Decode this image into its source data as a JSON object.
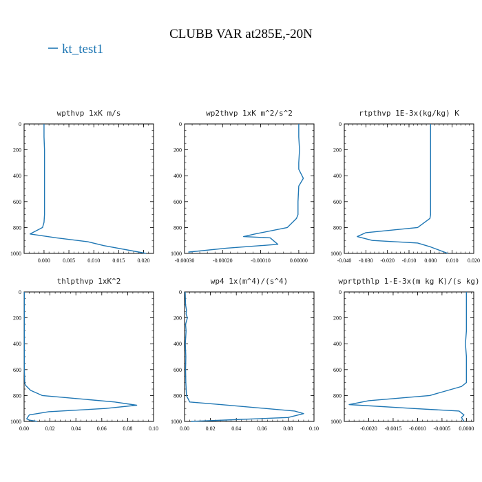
{
  "figure": {
    "title": "CLUBB VAR at285E,-20N",
    "legend": {
      "label": "kt_test1",
      "color": "#1f77b4"
    }
  },
  "chart_data": [
    {
      "type": "line",
      "title": "wpthvp   1xK m/s",
      "xlabel": "",
      "ylabel": "",
      "xlim": [
        -0.004,
        0.022
      ],
      "ylim": [
        1000,
        0
      ],
      "xticks": [
        0.0,
        0.005,
        0.01,
        0.015,
        0.02
      ],
      "xtick_labels": [
        "0.000",
        "0.005",
        "0.010",
        "0.015",
        "0.020"
      ],
      "yticks": [
        0,
        200,
        400,
        600,
        800,
        1000
      ],
      "ytick_labels": [
        "0",
        "200",
        "400",
        "600",
        "800",
        "1000"
      ],
      "series": [
        {
          "name": "kt_test1",
          "x": [
            0.0,
            0.0,
            0.0001,
            0.0001,
            0.0001,
            0.0001,
            0.0001,
            0.0001,
            0.0,
            -0.0003,
            -0.0028,
            0.0025,
            0.0088,
            0.012,
            0.0205
          ],
          "y": [
            0,
            100,
            200,
            300,
            400,
            500,
            600,
            700,
            760,
            800,
            850,
            880,
            910,
            940,
            1000
          ]
        }
      ],
      "color": "#1f77b4"
    },
    {
      "type": "line",
      "title": "wp2thvp   1xK m^2/s^2",
      "xlabel": "",
      "ylabel": "",
      "xlim": [
        -0.0003,
        4e-05
      ],
      "ylim": [
        1000,
        0
      ],
      "xticks": [
        -0.0003,
        -0.0002,
        -0.0001,
        0.0
      ],
      "xtick_labels": [
        "-0.00030",
        "-0.00020",
        "-0.00010",
        "0.00000"
      ],
      "yticks": [
        0,
        200,
        400,
        600,
        800,
        1000
      ],
      "ytick_labels": [
        "0",
        "200",
        "400",
        "600",
        "800",
        "1000"
      ],
      "series": [
        {
          "name": "kt_test1",
          "x": [
            0.0,
            0.0,
            2e-06,
            0.0,
            0.0,
            1.2e-05,
            0.0,
            -2e-06,
            -2e-06,
            -6e-06,
            -3e-05,
            -0.000115,
            -0.000145,
            -7.5e-05,
            -5.5e-05,
            -0.00019,
            -0.00029
          ],
          "y": [
            0,
            100,
            200,
            300,
            350,
            420,
            480,
            600,
            700,
            730,
            800,
            850,
            870,
            880,
            930,
            960,
            990
          ]
        }
      ],
      "color": "#1f77b4"
    },
    {
      "type": "line",
      "title": "rtpthvp   1E-3x(kg/kg) K",
      "xlabel": "",
      "ylabel": "",
      "xlim": [
        -0.04,
        0.02
      ],
      "ylim": [
        1000,
        0
      ],
      "xticks": [
        -0.04,
        -0.03,
        -0.02,
        -0.01,
        0.0,
        0.01,
        0.02
      ],
      "xtick_labels": [
        "-0.040",
        "-0.030",
        "-0.020",
        "-0.010",
        "0.000",
        "0.010",
        "0.020"
      ],
      "yticks": [
        0,
        200,
        400,
        600,
        800,
        1000
      ],
      "ytick_labels": [
        "0",
        "200",
        "400",
        "600",
        "800",
        "1000"
      ],
      "series": [
        {
          "name": "kt_test1",
          "x": [
            0.0,
            0.0,
            0.0,
            0.0,
            0.0,
            0.0,
            0.0,
            0.0,
            -0.0003,
            -0.006,
            -0.03,
            -0.034,
            -0.027,
            -0.006,
            0.0,
            0.008
          ],
          "y": [
            0,
            100,
            200,
            300,
            400,
            500,
            600,
            700,
            730,
            800,
            840,
            870,
            900,
            920,
            950,
            1000
          ]
        }
      ],
      "color": "#1f77b4"
    },
    {
      "type": "line",
      "title": "thlpthvp   1xK^2",
      "xlabel": "",
      "ylabel": "",
      "xlim": [
        0.0,
        0.1
      ],
      "ylim": [
        1000,
        0
      ],
      "xticks": [
        0.0,
        0.02,
        0.04,
        0.06,
        0.08,
        0.1
      ],
      "xtick_labels": [
        "0.00",
        "0.02",
        "0.04",
        "0.06",
        "0.08",
        "0.10"
      ],
      "yticks": [
        0,
        200,
        400,
        600,
        800,
        1000
      ],
      "ytick_labels": [
        "0",
        "200",
        "400",
        "600",
        "800",
        "1000"
      ],
      "series": [
        {
          "name": "kt_test1",
          "x": [
            0.0002,
            0.0002,
            0.0002,
            0.0002,
            0.0002,
            0.0002,
            0.0002,
            0.0005,
            0.001,
            0.005,
            0.014,
            0.07,
            0.087,
            0.063,
            0.019,
            0.004,
            0.002,
            0.004,
            0.01
          ],
          "y": [
            0,
            100,
            200,
            300,
            400,
            500,
            600,
            700,
            720,
            760,
            800,
            850,
            875,
            900,
            925,
            950,
            980,
            990,
            1000
          ]
        }
      ],
      "color": "#1f77b4"
    },
    {
      "type": "line",
      "title": "wp4   1x(m^4)/(s^4)",
      "xlabel": "",
      "ylabel": "",
      "xlim": [
        0.0,
        0.1
      ],
      "ylim": [
        1000,
        0
      ],
      "xticks": [
        0.0,
        0.02,
        0.04,
        0.06,
        0.08,
        0.1
      ],
      "xtick_labels": [
        "0.00",
        "0.02",
        "0.04",
        "0.06",
        "0.08",
        "0.10"
      ],
      "yticks": [
        0,
        200,
        400,
        600,
        800,
        1000
      ],
      "ytick_labels": [
        "0",
        "200",
        "400",
        "600",
        "800",
        "1000"
      ],
      "series": [
        {
          "name": "kt_test1",
          "x": [
            0.0005,
            0.0008,
            0.0015,
            0.0012,
            0.0022,
            0.0008,
            0.0012,
            0.0006,
            0.001,
            0.0008,
            0.001,
            0.0015,
            0.004,
            0.028,
            0.085,
            0.092,
            0.08,
            0.005
          ],
          "y": [
            0,
            100,
            140,
            170,
            200,
            250,
            300,
            400,
            500,
            600,
            700,
            800,
            850,
            870,
            920,
            940,
            970,
            1000
          ]
        }
      ],
      "color": "#1f77b4"
    },
    {
      "type": "line",
      "title": "wprtpthlp   1-E-3x(m kg K)/(s kg)",
      "xlabel": "",
      "ylabel": "",
      "xlim": [
        -0.0025,
        0.00015
      ],
      "ylim": [
        1000,
        0
      ],
      "xticks": [
        -0.002,
        -0.0015,
        -0.001,
        -0.0005,
        0.0
      ],
      "xtick_labels": [
        "-0.0020",
        "-0.0015",
        "-0.0010",
        "-0.0005",
        "0.0000"
      ],
      "yticks": [
        0,
        200,
        400,
        600,
        800,
        1000
      ],
      "ytick_labels": [
        "0",
        "200",
        "400",
        "600",
        "800",
        "1000"
      ],
      "series": [
        {
          "name": "kt_test1",
          "x": [
            0.0,
            0.0,
            0.0,
            0.0,
            -2e-05,
            0.0,
            0.0,
            0.0,
            -0.0001,
            -0.00075,
            -0.002,
            -0.0024,
            -0.0011,
            -0.00015,
            -5e-05,
            -0.0001,
            -5e-05
          ],
          "y": [
            0,
            100,
            200,
            300,
            400,
            500,
            600,
            700,
            730,
            800,
            840,
            870,
            900,
            920,
            950,
            970,
            1000
          ]
        }
      ],
      "color": "#1f77b4"
    }
  ]
}
